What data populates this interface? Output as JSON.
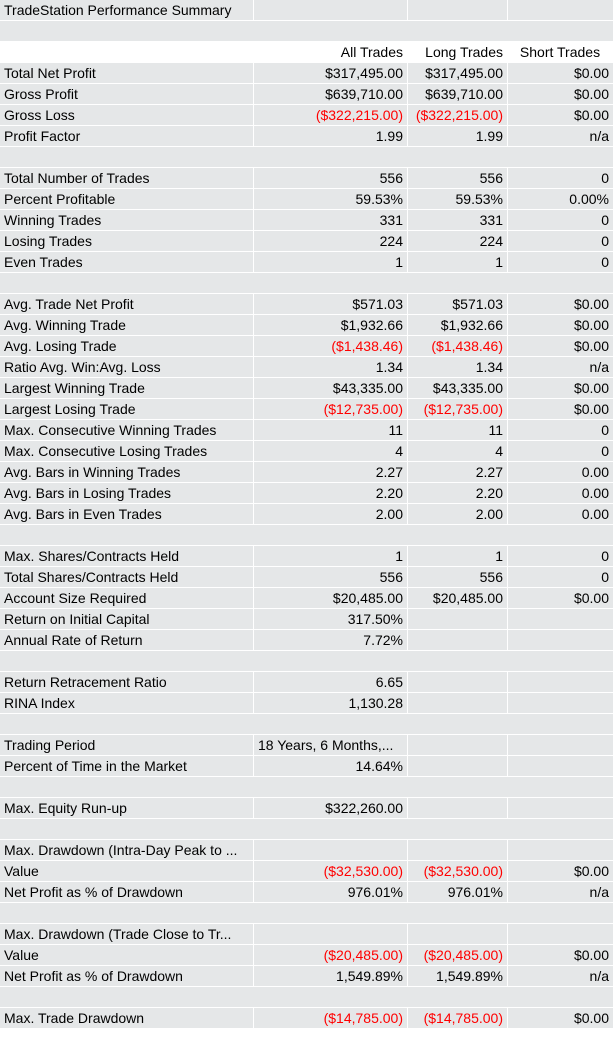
{
  "title": "TradeStation Performance Summary",
  "columns": [
    "All Trades",
    "Long Trades",
    "Short Trades"
  ],
  "rows": [
    {
      "type": "title"
    },
    {
      "type": "blank"
    },
    {
      "type": "header"
    },
    {
      "label": "Total Net Profit",
      "values": [
        "$317,495.00",
        "$317,495.00",
        "$0.00"
      ],
      "neg": [
        false,
        false,
        false
      ]
    },
    {
      "label": "Gross Profit",
      "values": [
        "$639,710.00",
        "$639,710.00",
        "$0.00"
      ],
      "neg": [
        false,
        false,
        false
      ]
    },
    {
      "label": "Gross Loss",
      "values": [
        "($322,215.00)",
        "($322,215.00)",
        "$0.00"
      ],
      "neg": [
        true,
        true,
        false
      ]
    },
    {
      "label": "Profit Factor",
      "values": [
        "1.99",
        "1.99",
        "n/a"
      ],
      "neg": [
        false,
        false,
        false
      ]
    },
    {
      "type": "blank"
    },
    {
      "label": "Total Number of Trades",
      "values": [
        "556",
        "556",
        "0"
      ],
      "neg": [
        false,
        false,
        false
      ]
    },
    {
      "label": "Percent Profitable",
      "values": [
        "59.53%",
        "59.53%",
        "0.00%"
      ],
      "neg": [
        false,
        false,
        false
      ]
    },
    {
      "label": "Winning Trades",
      "values": [
        "331",
        "331",
        "0"
      ],
      "neg": [
        false,
        false,
        false
      ]
    },
    {
      "label": "Losing Trades",
      "values": [
        "224",
        "224",
        "0"
      ],
      "neg": [
        false,
        false,
        false
      ]
    },
    {
      "label": "Even Trades",
      "values": [
        "1",
        "1",
        "0"
      ],
      "neg": [
        false,
        false,
        false
      ]
    },
    {
      "type": "blank"
    },
    {
      "label": "Avg. Trade Net Profit",
      "values": [
        "$571.03",
        "$571.03",
        "$0.00"
      ],
      "neg": [
        false,
        false,
        false
      ]
    },
    {
      "label": "Avg. Winning Trade",
      "values": [
        "$1,932.66",
        "$1,932.66",
        "$0.00"
      ],
      "neg": [
        false,
        false,
        false
      ]
    },
    {
      "label": "Avg. Losing Trade",
      "values": [
        "($1,438.46)",
        "($1,438.46)",
        "$0.00"
      ],
      "neg": [
        true,
        true,
        false
      ]
    },
    {
      "label": "Ratio Avg. Win:Avg. Loss",
      "values": [
        "1.34",
        "1.34",
        "n/a"
      ],
      "neg": [
        false,
        false,
        false
      ]
    },
    {
      "label": "Largest Winning Trade",
      "values": [
        "$43,335.00",
        "$43,335.00",
        "$0.00"
      ],
      "neg": [
        false,
        false,
        false
      ]
    },
    {
      "label": "Largest Losing Trade",
      "values": [
        "($12,735.00)",
        "($12,735.00)",
        "$0.00"
      ],
      "neg": [
        true,
        true,
        false
      ]
    },
    {
      "label": "Max. Consecutive Winning Trades",
      "values": [
        "11",
        "11",
        "0"
      ],
      "neg": [
        false,
        false,
        false
      ]
    },
    {
      "label": "Max. Consecutive Losing Trades",
      "values": [
        "4",
        "4",
        "0"
      ],
      "neg": [
        false,
        false,
        false
      ]
    },
    {
      "label": "Avg. Bars in Winning Trades",
      "values": [
        "2.27",
        "2.27",
        "0.00"
      ],
      "neg": [
        false,
        false,
        false
      ]
    },
    {
      "label": "Avg. Bars in Losing Trades",
      "values": [
        "2.20",
        "2.20",
        "0.00"
      ],
      "neg": [
        false,
        false,
        false
      ]
    },
    {
      "label": "Avg. Bars in Even Trades",
      "values": [
        "2.00",
        "2.00",
        "0.00"
      ],
      "neg": [
        false,
        false,
        false
      ]
    },
    {
      "type": "blank"
    },
    {
      "label": "Max. Shares/Contracts Held",
      "values": [
        "1",
        "1",
        "0"
      ],
      "neg": [
        false,
        false,
        false
      ]
    },
    {
      "label": "Total Shares/Contracts Held",
      "values": [
        "556",
        "556",
        "0"
      ],
      "neg": [
        false,
        false,
        false
      ]
    },
    {
      "label": "Account Size Required",
      "values": [
        "$20,485.00",
        "$20,485.00",
        "$0.00"
      ],
      "neg": [
        false,
        false,
        false
      ]
    },
    {
      "label": "Return on Initial Capital",
      "values": [
        "317.50%",
        "",
        ""
      ],
      "neg": [
        false,
        false,
        false
      ]
    },
    {
      "label": "Annual Rate of Return",
      "values": [
        "7.72%",
        "",
        ""
      ],
      "neg": [
        false,
        false,
        false
      ]
    },
    {
      "type": "blank"
    },
    {
      "label": "Return Retracement Ratio",
      "values": [
        "6.65",
        "",
        ""
      ],
      "neg": [
        false,
        false,
        false
      ]
    },
    {
      "label": "RINA Index",
      "values": [
        "1,130.28",
        "",
        ""
      ],
      "neg": [
        false,
        false,
        false
      ]
    },
    {
      "type": "blank"
    },
    {
      "label": "Trading Period",
      "values": [
        "18 Years, 6 Months,...",
        "",
        ""
      ],
      "neg": [
        false,
        false,
        false
      ],
      "leftFirst": true
    },
    {
      "label": "Percent of Time in the Market",
      "values": [
        "14.64%",
        "",
        ""
      ],
      "neg": [
        false,
        false,
        false
      ]
    },
    {
      "type": "blank"
    },
    {
      "label": "Max. Equity Run-up",
      "values": [
        "$322,260.00",
        "",
        ""
      ],
      "neg": [
        false,
        false,
        false
      ]
    },
    {
      "type": "blank"
    },
    {
      "label": "Max. Drawdown (Intra-Day Peak to ...",
      "values": [
        "",
        "",
        ""
      ],
      "neg": [
        false,
        false,
        false
      ]
    },
    {
      "label": "Value",
      "values": [
        "($32,530.00)",
        "($32,530.00)",
        "$0.00"
      ],
      "neg": [
        true,
        true,
        false
      ]
    },
    {
      "label": "Net Profit as % of Drawdown",
      "values": [
        "976.01%",
        "976.01%",
        "n/a"
      ],
      "neg": [
        false,
        false,
        false
      ]
    },
    {
      "type": "blank"
    },
    {
      "label": "Max. Drawdown (Trade Close to Tr...",
      "values": [
        "",
        "",
        ""
      ],
      "neg": [
        false,
        false,
        false
      ]
    },
    {
      "label": "Value",
      "values": [
        "($20,485.00)",
        "($20,485.00)",
        "$0.00"
      ],
      "neg": [
        true,
        true,
        false
      ]
    },
    {
      "label": "Net Profit as % of Drawdown",
      "values": [
        "1,549.89%",
        "1,549.89%",
        "n/a"
      ],
      "neg": [
        false,
        false,
        false
      ]
    },
    {
      "type": "blank"
    },
    {
      "label": "Max. Trade Drawdown",
      "values": [
        "($14,785.00)",
        "($14,785.00)",
        "$0.00"
      ],
      "neg": [
        true,
        true,
        false
      ]
    }
  ]
}
